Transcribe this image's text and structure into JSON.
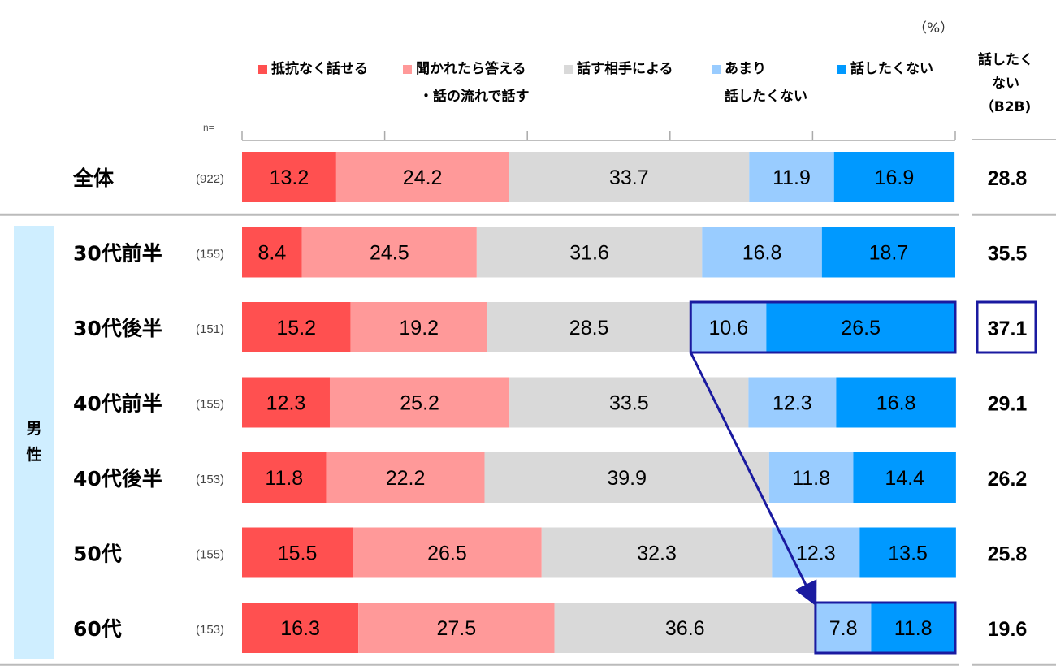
{
  "chart_data": {
    "type": "bar",
    "orientation": "horizontal",
    "stacked": true,
    "unit_label": "（%）",
    "n_prefix": "n=",
    "b2b_header": [
      "話したく",
      "ない",
      "（B2B)"
    ],
    "group_label": [
      "男",
      "性"
    ],
    "series": [
      {
        "name": "抵抗なく話せる",
        "legend_lines": [
          "抵抗なく話せる"
        ],
        "color": "#ff5050",
        "values": [
          13.2,
          8.4,
          15.2,
          12.3,
          11.8,
          15.5,
          16.3
        ]
      },
      {
        "name": "聞かれたら答える・話の流れで話す",
        "legend_lines": [
          "聞かれたら答える",
          "・話の流れで話す"
        ],
        "color": "#ff9999",
        "values": [
          24.2,
          24.5,
          19.2,
          25.2,
          22.2,
          26.5,
          27.5
        ]
      },
      {
        "name": "話す相手による",
        "legend_lines": [
          "話す相手による"
        ],
        "color": "#d9d9d9",
        "values": [
          33.7,
          31.6,
          28.5,
          33.5,
          39.9,
          32.3,
          36.6
        ]
      },
      {
        "name": "あまり話したくない",
        "legend_lines": [
          "あまり",
          "話したくない"
        ],
        "color": "#99ccff",
        "values": [
          11.9,
          16.8,
          10.6,
          12.3,
          11.8,
          12.3,
          7.8
        ]
      },
      {
        "name": "話したくない",
        "legend_lines": [
          "話したくない"
        ],
        "color": "#0099ff",
        "values": [
          16.9,
          18.7,
          26.5,
          16.8,
          14.4,
          13.5,
          11.8
        ]
      }
    ],
    "rows": [
      {
        "label": "全体",
        "n": "(922)",
        "b2b": "28.8"
      },
      {
        "label": "30代前半",
        "n": "(155)",
        "b2b": "35.5"
      },
      {
        "label": "30代後半",
        "n": "(151)",
        "b2b": "37.1"
      },
      {
        "label": "40代前半",
        "n": "(155)",
        "b2b": "29.1"
      },
      {
        "label": "40代後半",
        "n": "(153)",
        "b2b": "26.2"
      },
      {
        "label": "50代",
        "n": "(155)",
        "b2b": "25.8"
      },
      {
        "label": "60代",
        "n": "(153)",
        "b2b": "19.6"
      }
    ],
    "xlim": [
      0,
      100
    ],
    "highlights": {
      "rows": [
        "30代後半",
        "60代"
      ],
      "series": [
        "あまり話したくない",
        "話したくない"
      ],
      "b2b_row": "30代後半",
      "arrow_from": "30代後半",
      "arrow_to": "60代"
    },
    "colors": {
      "highlight": "#1a1aa0",
      "text": "#000000",
      "group_band": "#cfeeff",
      "separator": "#bbbbbb",
      "axis": "#aaaaaa"
    }
  }
}
